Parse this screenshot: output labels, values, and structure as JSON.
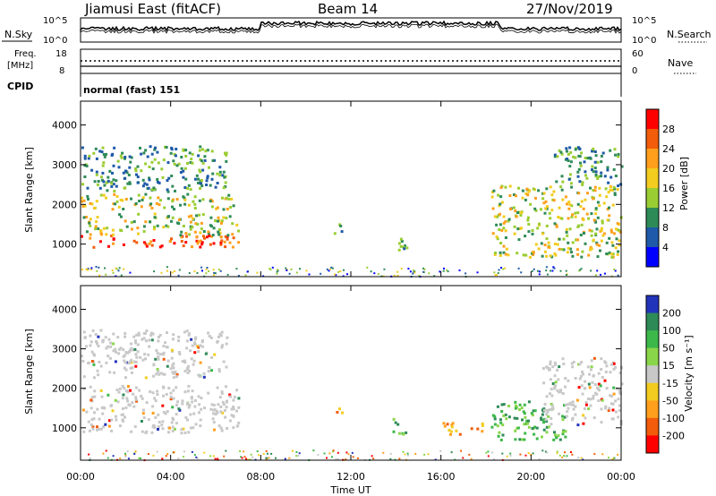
{
  "header": {
    "station": "Jiamusi East (fitACF)",
    "beam": "Beam 14",
    "date": "27/Nov/2019"
  },
  "noise_panel": {
    "left_label": "N.Sky",
    "right_label": "N.Search",
    "ticks_left": [
      "10^5",
      "10^0"
    ],
    "ticks_right": [
      "10^5",
      "10^0"
    ]
  },
  "freq_panel": {
    "left_label_1": "Freq.",
    "left_label_2": "[MHz]",
    "ticks_left": [
      "18",
      "8"
    ],
    "right_label": "Nave",
    "ticks_right": [
      "60",
      "0"
    ]
  },
  "cpid_panel": {
    "label": "CPID",
    "value": "normal (fast) 151"
  },
  "chart_data": [
    {
      "type": "heatmap",
      "name": "power",
      "ylabel": "Slant Range [km]",
      "xlabel": "Time UT",
      "ylim": [
        180,
        4600
      ],
      "xlim": [
        0,
        24
      ],
      "yticks": [
        "1000",
        "2000",
        "3000",
        "4000"
      ],
      "xticks": [
        "00:00",
        "04:00",
        "08:00",
        "12:00",
        "16:00",
        "20:00",
        "00:00"
      ],
      "colorbar": {
        "label": "Power [dB]",
        "ticks": [
          "28",
          "24",
          "20",
          "16",
          "12",
          "8",
          "4"
        ],
        "colors": [
          "#ff0000",
          "#f25c0a",
          "#ff9f1c",
          "#f2cc1f",
          "#9acd32",
          "#2e8b57",
          "#1e5aa8",
          "#0000ff"
        ]
      },
      "regions": [
        {
          "t0": 0.0,
          "t1": 7.0,
          "r0": 950,
          "r1": 1250,
          "level": "high"
        },
        {
          "t0": 0.0,
          "t1": 7.0,
          "r0": 1250,
          "r1": 1800,
          "level": "mid"
        },
        {
          "t0": 0.0,
          "t1": 6.8,
          "r0": 1900,
          "r1": 2300,
          "level": "mid"
        },
        {
          "t0": 0.0,
          "t1": 6.5,
          "r0": 2350,
          "r1": 3500,
          "level": "low"
        },
        {
          "t0": 11.2,
          "t1": 11.6,
          "r0": 1300,
          "r1": 1650,
          "level": "low"
        },
        {
          "t0": 13.8,
          "t1": 14.5,
          "r0": 850,
          "r1": 1250,
          "level": "low"
        },
        {
          "t0": 18.2,
          "t1": 24.0,
          "r0": 700,
          "r1": 2500,
          "level": "mid"
        },
        {
          "t0": 21.0,
          "t1": 24.0,
          "r0": 2500,
          "r1": 3500,
          "level": "low"
        }
      ]
    },
    {
      "type": "heatmap",
      "name": "velocity",
      "ylabel": "Slant Range [km]",
      "xlabel": "Time UT",
      "ylim": [
        180,
        4600
      ],
      "xlim": [
        0,
        24
      ],
      "yticks": [
        "1000",
        "2000",
        "3000",
        "4000"
      ],
      "xticks": [
        "00:00",
        "04:00",
        "08:00",
        "12:00",
        "16:00",
        "20:00",
        "00:00"
      ],
      "colorbar": {
        "label": "Velocity [m s⁻¹]",
        "ticks": [
          "200",
          "100",
          "50",
          "15",
          "-15",
          "-50",
          "-100",
          "-200"
        ],
        "colors": [
          "#2233bb",
          "#2e8b57",
          "#3cb84a",
          "#8ad64a",
          "#c8c8c8",
          "#f2cc1f",
          "#ff9f1c",
          "#f25c0a",
          "#ff0000"
        ]
      },
      "regions": [
        {
          "t0": 0.0,
          "t1": 7.0,
          "r0": 900,
          "r1": 2100,
          "level": "grey"
        },
        {
          "t0": 0.0,
          "t1": 6.5,
          "r0": 2300,
          "r1": 3500,
          "level": "grey"
        },
        {
          "t0": 11.2,
          "t1": 11.6,
          "r0": 1300,
          "r1": 1650,
          "level": "neg"
        },
        {
          "t0": 13.8,
          "t1": 14.5,
          "r0": 850,
          "r1": 1250,
          "level": "pos"
        },
        {
          "t0": 16.0,
          "t1": 17.8,
          "r0": 850,
          "r1": 1150,
          "level": "neg"
        },
        {
          "t0": 18.2,
          "t1": 21.5,
          "r0": 700,
          "r1": 1700,
          "level": "pos"
        },
        {
          "t0": 20.5,
          "t1": 24.0,
          "r0": 1100,
          "r1": 2800,
          "level": "grey"
        }
      ]
    }
  ]
}
